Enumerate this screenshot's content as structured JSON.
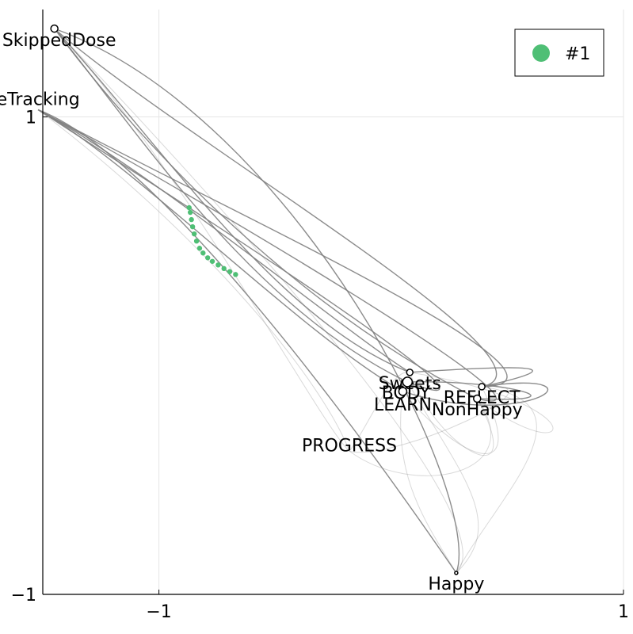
{
  "chart_data": {
    "type": "scatter",
    "xlim": [
      -1.5,
      1.0
    ],
    "ylim": [
      -1.0,
      1.45
    ],
    "x_ticks": [
      {
        "value": -1,
        "label": "−1"
      },
      {
        "value": 1,
        "label": "1"
      }
    ],
    "y_ticks": [
      {
        "value": -1,
        "label": "−1"
      },
      {
        "value": 1,
        "label": "1"
      }
    ],
    "grid": true,
    "legend_position": "top-right",
    "colors": {
      "series": "#4FBF75",
      "edges": "#808080",
      "grid": "#e6e6e6",
      "axis": "#000000"
    },
    "nodes": [
      {
        "name": "SkippedDose",
        "x": -1.45,
        "y": 1.37
      },
      {
        "name": "eTracking",
        "x": -1.52,
        "y": 1.03
      },
      {
        "name": "Sweets",
        "x": 0.08,
        "y": -0.07
      },
      {
        "name": "BODY",
        "x": 0.07,
        "y": -0.11
      },
      {
        "name": "LEARN",
        "x": 0.05,
        "y": -0.15
      },
      {
        "name": "REFLECT",
        "x": 0.39,
        "y": -0.13
      },
      {
        "name": "NonHappy",
        "x": 0.37,
        "y": -0.18
      },
      {
        "name": "PROGRESS",
        "x": -0.18,
        "y": -0.4
      },
      {
        "name": "Happy",
        "x": 0.28,
        "y": -0.91
      }
    ],
    "series": [
      {
        "name": "#1",
        "points": [
          [
            -0.87,
            0.62
          ],
          [
            -0.865,
            0.6
          ],
          [
            -0.86,
            0.57
          ],
          [
            -0.855,
            0.54
          ],
          [
            -0.848,
            0.51
          ],
          [
            -0.838,
            0.48
          ],
          [
            -0.825,
            0.45
          ],
          [
            -0.81,
            0.43
          ],
          [
            -0.79,
            0.41
          ],
          [
            -0.77,
            0.395
          ],
          [
            -0.745,
            0.38
          ],
          [
            -0.72,
            0.365
          ],
          [
            -0.695,
            0.352
          ],
          [
            -0.67,
            0.34
          ]
        ]
      }
    ]
  }
}
